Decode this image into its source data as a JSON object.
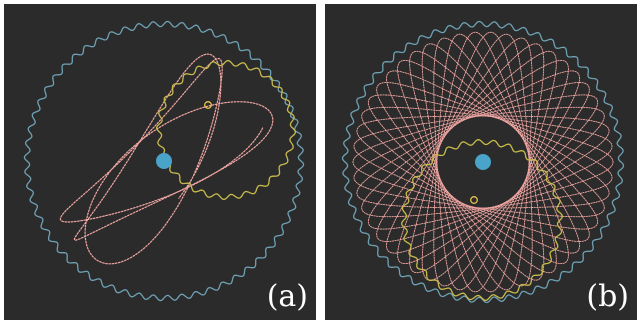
{
  "figure": {
    "panels": [
      {
        "id": "a",
        "label": "(a)",
        "outer_gear": {
          "teeth": 60
        },
        "inner_gear": {
          "teeth": 28
        },
        "curve": {
          "type": "partial spirograph loops",
          "loops": 3
        }
      },
      {
        "id": "b",
        "label": "(b)",
        "outer_gear": {
          "teeth": 58
        },
        "inner_gear": {
          "teeth": 32
        },
        "curve": {
          "type": "complete spirograph rosette"
        }
      }
    ],
    "colors": {
      "background": "#2b2b2b",
      "outer_gear": "#6ea1b4",
      "inner_gear": "#c8bb4c",
      "curve": "#f1a7a3",
      "center_dot": "#4aa3c8",
      "pen_marker": "#e8c14a",
      "label_text": "#ffffff"
    }
  }
}
